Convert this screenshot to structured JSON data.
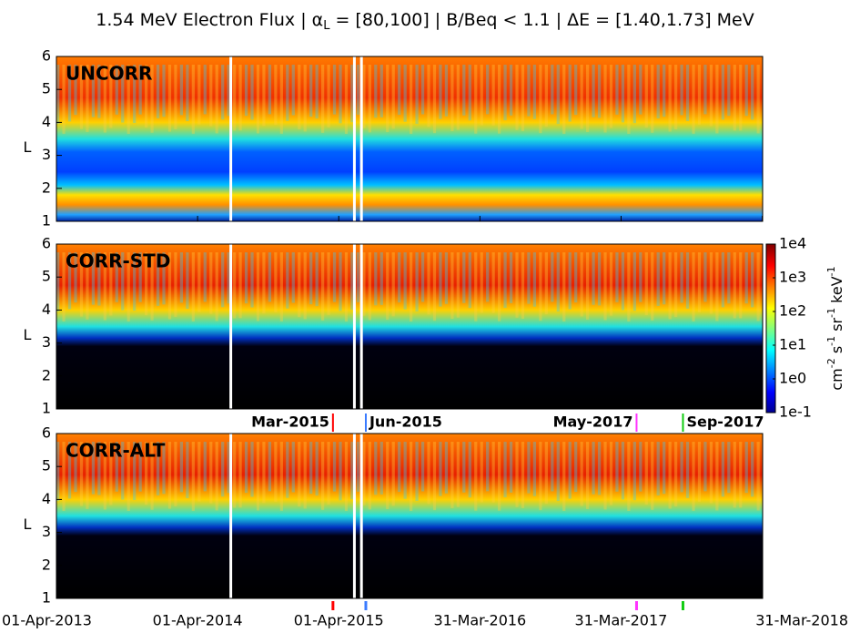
{
  "chart_data": {
    "type": "heatmap",
    "title": [
      "1.54 MeV Electron Flux | α",
      "L",
      " = [80,100] | B/Beq < 1.1 | ΔE = [1.40,1.73] MeV"
    ],
    "panels": [
      "UNCORR",
      "CORR-STD",
      "CORR-ALT"
    ],
    "y_label": "L",
    "ylim": [
      1,
      6
    ],
    "yticks": [
      1,
      2,
      3,
      4,
      5,
      6
    ],
    "xlim": [
      0,
      1826
    ],
    "xticks": [
      {
        "value": 0,
        "label": "01-Apr-2013"
      },
      {
        "value": 365,
        "label": "01-Apr-2014"
      },
      {
        "value": 730,
        "label": "01-Apr-2015"
      },
      {
        "value": 1095,
        "label": "31-Mar-2016"
      },
      {
        "value": 1460,
        "label": "31-Mar-2017"
      },
      {
        "value": 1825,
        "label": "31-Mar-2018"
      }
    ],
    "colorbar": {
      "label": [
        "cm",
        "-2",
        " s",
        "-1",
        " sr",
        "-1",
        " keV",
        "-1"
      ],
      "log": true,
      "clim": [
        0.1,
        10000
      ],
      "ticks": [
        {
          "value": 10000,
          "label": "1e4"
        },
        {
          "value": 1000,
          "label": "1e3"
        },
        {
          "value": 100,
          "label": "1e2"
        },
        {
          "value": 10,
          "label": "1e1"
        },
        {
          "value": 1,
          "label": "1e0"
        },
        {
          "value": 0.1,
          "label": "1e-1"
        }
      ]
    },
    "events": [
      {
        "label": "Mar-2015",
        "x": 715,
        "color": "#ff0000"
      },
      {
        "label": "Jun-2015",
        "x": 800,
        "color": "#3a7bff"
      },
      {
        "label": "May-2017",
        "x": 1500,
        "color": "#ff33ff"
      },
      {
        "label": "Sep-2017",
        "x": 1620,
        "color": "#11cc11"
      }
    ]
  }
}
